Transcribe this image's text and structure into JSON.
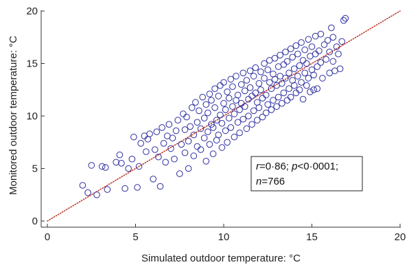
{
  "chart_data": {
    "type": "scatter",
    "title": "",
    "xlabel": "Simulated outdoor temperature: °C",
    "ylabel": "Monitored outdoor temperature: °C",
    "xlim": [
      0,
      20
    ],
    "ylim": [
      0,
      20
    ],
    "xticks": [
      "0",
      "5",
      "10",
      "15",
      "20"
    ],
    "yticks": [
      "0",
      "5",
      "10",
      "15",
      "20"
    ],
    "grid": false,
    "reference_line": {
      "style": "dotted",
      "from": [
        0,
        0
      ],
      "to": [
        20,
        20
      ]
    },
    "annotation": {
      "line1": [
        {
          "text": "r",
          "italic": true
        },
        {
          "text": "=0·86; ",
          "italic": false
        },
        {
          "text": "p",
          "italic": true
        },
        {
          "text": "<0·0001;",
          "italic": false
        }
      ],
      "line2": [
        {
          "text": "n",
          "italic": true
        },
        {
          "text": "=766",
          "italic": false
        }
      ]
    },
    "series": [
      {
        "name": "",
        "points": [
          [
            2.0,
            3.4
          ],
          [
            2.3,
            2.7
          ],
          [
            2.5,
            5.3
          ],
          [
            2.8,
            2.5
          ],
          [
            3.1,
            5.2
          ],
          [
            3.3,
            5.1
          ],
          [
            3.4,
            3.0
          ],
          [
            3.9,
            5.6
          ],
          [
            4.1,
            6.3
          ],
          [
            4.2,
            5.5
          ],
          [
            4.4,
            3.1
          ],
          [
            4.6,
            5.0
          ],
          [
            4.8,
            5.9
          ],
          [
            4.9,
            8.0
          ],
          [
            5.1,
            3.2
          ],
          [
            5.2,
            5.2
          ],
          [
            5.3,
            7.4
          ],
          [
            5.5,
            8.1
          ],
          [
            5.6,
            6.6
          ],
          [
            5.7,
            7.8
          ],
          [
            5.8,
            8.3
          ],
          [
            6.0,
            4.0
          ],
          [
            6.1,
            6.8
          ],
          [
            6.2,
            8.5
          ],
          [
            6.3,
            6.1
          ],
          [
            6.4,
            3.3
          ],
          [
            6.5,
            8.9
          ],
          [
            6.6,
            7.4
          ],
          [
            6.7,
            5.6
          ],
          [
            6.8,
            8.1
          ],
          [
            6.9,
            9.2
          ],
          [
            7.0,
            6.9
          ],
          [
            7.1,
            7.9
          ],
          [
            7.2,
            5.9
          ],
          [
            7.3,
            8.6
          ],
          [
            7.4,
            9.6
          ],
          [
            7.5,
            4.5
          ],
          [
            7.6,
            7.3
          ],
          [
            7.7,
            10.2
          ],
          [
            7.8,
            6.5
          ],
          [
            7.8,
            8.7
          ],
          [
            7.9,
            9.9
          ],
          [
            8.0,
            5.0
          ],
          [
            8.0,
            7.6
          ],
          [
            8.1,
            9.0
          ],
          [
            8.2,
            10.8
          ],
          [
            8.3,
            6.2
          ],
          [
            8.3,
            8.2
          ],
          [
            8.4,
            11.3
          ],
          [
            8.5,
            7.1
          ],
          [
            8.5,
            9.4
          ],
          [
            8.6,
            10.5
          ],
          [
            8.7,
            6.8
          ],
          [
            8.7,
            8.8
          ],
          [
            8.8,
            11.8
          ],
          [
            8.9,
            7.9
          ],
          [
            8.9,
            9.8
          ],
          [
            9.0,
            11.1
          ],
          [
            9.0,
            5.7
          ],
          [
            9.1,
            8.5
          ],
          [
            9.1,
            10.3
          ],
          [
            9.2,
            12.1
          ],
          [
            9.2,
            7.3
          ],
          [
            9.3,
            9.2
          ],
          [
            9.3,
            11.5
          ],
          [
            9.4,
            6.4
          ],
          [
            9.4,
            8.9
          ],
          [
            9.5,
            10.8
          ],
          [
            9.5,
            12.6
          ],
          [
            9.6,
            7.7
          ],
          [
            9.6,
            9.6
          ],
          [
            9.7,
            11.9
          ],
          [
            9.7,
            8.2
          ],
          [
            9.8,
            10.1
          ],
          [
            9.8,
            12.9
          ],
          [
            9.9,
            7.0
          ],
          [
            9.9,
            9.3
          ],
          [
            10.0,
            11.2
          ],
          [
            10.0,
            13.2
          ],
          [
            10.1,
            8.6
          ],
          [
            10.1,
            10.6
          ],
          [
            10.2,
            12.3
          ],
          [
            10.2,
            7.5
          ],
          [
            10.3,
            9.8
          ],
          [
            10.3,
            11.7
          ],
          [
            10.4,
            13.5
          ],
          [
            10.4,
            8.9
          ],
          [
            10.5,
            10.9
          ],
          [
            10.5,
            12.8
          ],
          [
            10.6,
            8.0
          ],
          [
            10.6,
            10.2
          ],
          [
            10.7,
            11.5
          ],
          [
            10.7,
            13.8
          ],
          [
            10.8,
            9.4
          ],
          [
            10.8,
            12.0
          ],
          [
            10.9,
            10.6
          ],
          [
            10.9,
            8.4
          ],
          [
            11.0,
            13.0
          ],
          [
            11.0,
            11.2
          ],
          [
            11.1,
            9.7
          ],
          [
            11.1,
            14.1
          ],
          [
            11.2,
            12.4
          ],
          [
            11.2,
            10.9
          ],
          [
            11.3,
            8.8
          ],
          [
            11.3,
            13.4
          ],
          [
            11.4,
            11.6
          ],
          [
            11.4,
            10.0
          ],
          [
            11.5,
            14.3
          ],
          [
            11.5,
            12.7
          ],
          [
            11.6,
            9.2
          ],
          [
            11.6,
            11.9
          ],
          [
            11.7,
            13.8
          ],
          [
            11.7,
            10.5
          ],
          [
            11.8,
            12.2
          ],
          [
            11.8,
            14.6
          ],
          [
            11.9,
            9.6
          ],
          [
            11.9,
            11.3
          ],
          [
            12.0,
            13.1
          ],
          [
            12.0,
            10.8
          ],
          [
            12.1,
            14.2
          ],
          [
            12.1,
            12.5
          ],
          [
            12.2,
            9.9
          ],
          [
            12.2,
            11.7
          ],
          [
            12.3,
            13.6
          ],
          [
            12.3,
            15.0
          ],
          [
            12.4,
            10.3
          ],
          [
            12.4,
            12.0
          ],
          [
            12.5,
            14.4
          ],
          [
            12.5,
            11.1
          ],
          [
            12.6,
            13.2
          ],
          [
            12.6,
            15.3
          ],
          [
            12.7,
            10.6
          ],
          [
            12.7,
            12.6
          ],
          [
            12.8,
            14.0
          ],
          [
            12.8,
            11.5
          ],
          [
            12.9,
            13.5
          ],
          [
            12.9,
            15.5
          ],
          [
            13.0,
            10.9
          ],
          [
            13.0,
            12.9
          ],
          [
            13.1,
            14.7
          ],
          [
            13.1,
            11.8
          ],
          [
            13.2,
            13.8
          ],
          [
            13.2,
            15.8
          ],
          [
            13.3,
            11.2
          ],
          [
            13.3,
            13.1
          ],
          [
            13.4,
            14.9
          ],
          [
            13.4,
            12.2
          ],
          [
            13.5,
            16.1
          ],
          [
            13.5,
            13.6
          ],
          [
            13.6,
            11.5
          ],
          [
            13.6,
            15.2
          ],
          [
            13.7,
            12.6
          ],
          [
            13.7,
            14.1
          ],
          [
            13.8,
            16.4
          ],
          [
            13.8,
            11.8
          ],
          [
            13.9,
            13.4
          ],
          [
            13.9,
            15.6
          ],
          [
            14.0,
            12.9
          ],
          [
            14.0,
            14.5
          ],
          [
            14.1,
            16.7
          ],
          [
            14.1,
            12.2
          ],
          [
            14.2,
            13.8
          ],
          [
            14.2,
            15.9
          ],
          [
            14.3,
            12.5
          ],
          [
            14.3,
            14.8
          ],
          [
            14.4,
            17.0
          ],
          [
            14.4,
            13.2
          ],
          [
            14.5,
            15.3
          ],
          [
            14.5,
            11.6
          ],
          [
            14.6,
            14.1
          ],
          [
            14.6,
            16.3
          ],
          [
            14.7,
            12.9
          ],
          [
            14.7,
            15.0
          ],
          [
            14.8,
            17.3
          ],
          [
            14.8,
            13.6
          ],
          [
            14.9,
            15.7
          ],
          [
            14.9,
            12.3
          ],
          [
            15.0,
            14.4
          ],
          [
            15.0,
            16.6
          ],
          [
            15.1,
            12.5
          ],
          [
            15.1,
            13.9
          ],
          [
            15.2,
            15.9
          ],
          [
            15.2,
            17.6
          ],
          [
            15.3,
            14.7
          ],
          [
            15.3,
            12.6
          ],
          [
            15.4,
            16.2
          ],
          [
            15.5,
            15.1
          ],
          [
            15.5,
            17.8
          ],
          [
            15.6,
            13.6
          ],
          [
            15.7,
            16.8
          ],
          [
            15.8,
            15.4
          ],
          [
            15.9,
            17.2
          ],
          [
            16.0,
            14.1
          ],
          [
            16.0,
            16.1
          ],
          [
            16.1,
            18.4
          ],
          [
            16.2,
            15.2
          ],
          [
            16.2,
            17.5
          ],
          [
            16.3,
            14.3
          ],
          [
            16.4,
            16.6
          ],
          [
            16.5,
            15.9
          ],
          [
            16.6,
            14.5
          ],
          [
            16.7,
            17.1
          ],
          [
            16.8,
            19.1
          ],
          [
            16.9,
            19.3
          ]
        ]
      }
    ]
  }
}
